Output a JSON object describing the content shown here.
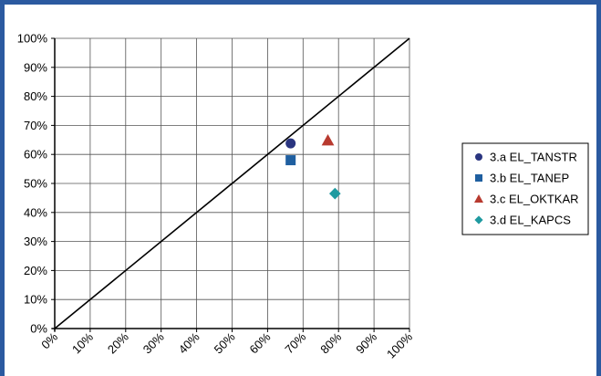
{
  "chart_data": {
    "type": "scatter",
    "title": "",
    "xlabel": "",
    "ylabel": "",
    "xlim": [
      0,
      100
    ],
    "ylim": [
      0,
      100
    ],
    "x_ticks": [
      "0%",
      "10%",
      "20%",
      "30%",
      "40%",
      "50%",
      "60%",
      "70%",
      "80%",
      "90%",
      "100%"
    ],
    "y_ticks": [
      "0%",
      "10%",
      "20%",
      "30%",
      "40%",
      "50%",
      "60%",
      "70%",
      "80%",
      "90%",
      "100%"
    ],
    "grid": true,
    "reference_line": {
      "from": [
        0,
        0
      ],
      "to": [
        100,
        100
      ]
    },
    "legend_position": "right",
    "series": [
      {
        "name": "3.a  EL_TANSTR",
        "marker": "circle",
        "color": "#2a3580",
        "x": [
          66.5
        ],
        "y": [
          63.8
        ]
      },
      {
        "name": "3.b EL_TANEP",
        "marker": "square",
        "color": "#1f5fa0",
        "x": [
          66.5
        ],
        "y": [
          58.0
        ]
      },
      {
        "name": "3.c EL_OKTKAR",
        "marker": "triangle",
        "color": "#b83a2f",
        "x": [
          77.0
        ],
        "y": [
          64.8
        ]
      },
      {
        "name": "3.d EL_KAPCS",
        "marker": "diamond",
        "color": "#1f9aa0",
        "x": [
          79.0
        ],
        "y": [
          46.5
        ]
      }
    ]
  }
}
